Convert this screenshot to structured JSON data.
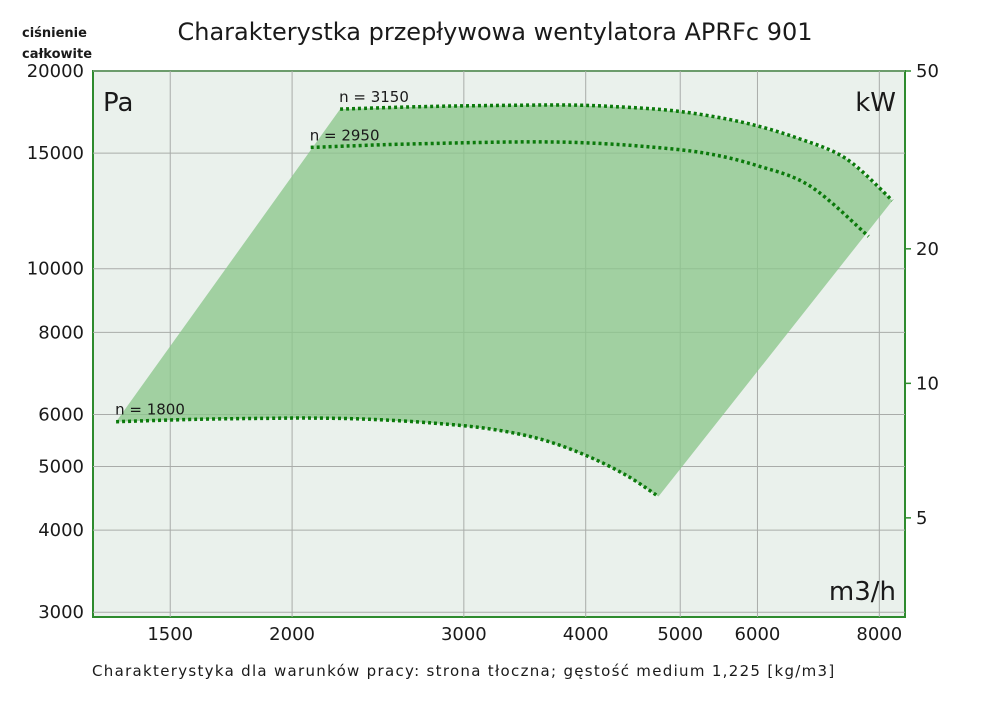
{
  "title": "Charakterystka przepływowa wentylatora APRFc 901",
  "corner_label": {
    "line1": "ciśnienie",
    "line2": "całkowite"
  },
  "footnote": "Charakterystyka dla warunków pracy: strona tłoczna; gęstość medium 1,225 [kg/m3]",
  "colors": {
    "frame": "#2e8b2e",
    "plot_bg": "#eaf1ec",
    "region": "#8cc68c",
    "curve": "#0b7a0b"
  },
  "chart_data": {
    "type": "line",
    "title": "Charakterystka przepływowa wentylatora APRFc 901",
    "x_scale": "log",
    "y_scale": "log",
    "xlim": [
      1250,
      8500
    ],
    "ylim": [
      2950,
      20000
    ],
    "y2lim": [
      3,
      50
    ],
    "xlabel": "m3/h",
    "ylabel": "Pa",
    "y2label": "kW",
    "x_ticks": [
      1500,
      2000,
      3000,
      4000,
      5000,
      6000,
      8000
    ],
    "y_ticks": [
      3000,
      4000,
      5000,
      6000,
      8000,
      10000,
      15000,
      20000
    ],
    "y2_ticks": [
      5,
      10,
      20,
      50
    ],
    "grid": true,
    "series": [
      {
        "name": "n = 3150",
        "x": [
          2240,
          2700,
          3200,
          3800,
          4300,
          5000,
          5800,
          6600,
          7400,
          8250
        ],
        "y": [
          17500,
          17650,
          17720,
          17750,
          17650,
          17350,
          16700,
          15800,
          14700,
          12700
        ]
      },
      {
        "name": "n = 2950",
        "x": [
          2090,
          2500,
          3000,
          3500,
          4000,
          4600,
          5300,
          6000,
          6800,
          7800
        ],
        "y": [
          15300,
          15450,
          15550,
          15600,
          15550,
          15350,
          15000,
          14350,
          13350,
          11200
        ]
      },
      {
        "name": "n = 1800",
        "x": [
          1320,
          1600,
          1900,
          2100,
          2400,
          2800,
          3200,
          3600,
          4000,
          4400,
          4750
        ],
        "y": [
          5850,
          5900,
          5920,
          5925,
          5900,
          5820,
          5700,
          5500,
          5200,
          4850,
          4500
        ]
      }
    ],
    "operating_region": {
      "x": [
        1320,
        2240,
        2700,
        3200,
        3800,
        4300,
        5000,
        5800,
        6600,
        7400,
        8250,
        4750,
        4400,
        4000,
        3600,
        3200,
        2800,
        2400,
        2100,
        1900,
        1600
      ],
      "y": [
        5850,
        17500,
        17650,
        17720,
        17750,
        17650,
        17350,
        16700,
        15800,
        14700,
        12700,
        4500,
        4850,
        5200,
        5500,
        5700,
        5820,
        5900,
        5925,
        5920,
        5900
      ]
    }
  }
}
